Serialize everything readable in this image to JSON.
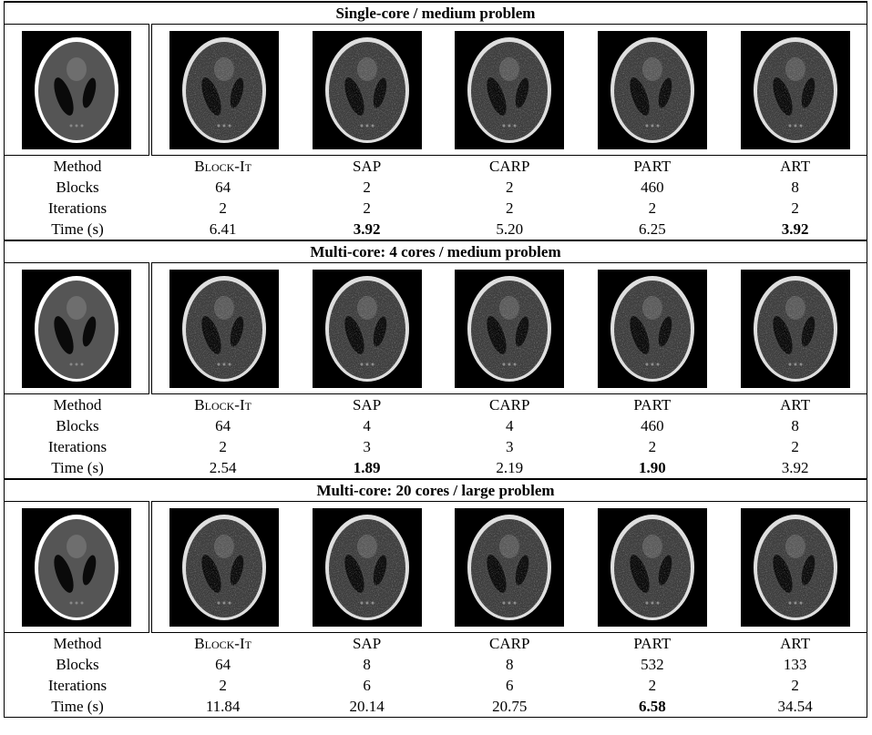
{
  "sections": [
    {
      "title": "Single-core / medium problem",
      "rows": [
        [
          "Method",
          "Block-It",
          "SAP",
          "CARP",
          "PART",
          "ART"
        ],
        [
          "Blocks",
          "64",
          "2",
          "2",
          "460",
          "8"
        ],
        [
          "Iterations",
          "2",
          "2",
          "2",
          "2",
          "2"
        ],
        [
          "Time (s)",
          "6.41",
          "3.92",
          "5.20",
          "6.25",
          "3.92"
        ]
      ],
      "bold": [
        [
          3,
          2
        ],
        [
          3,
          5
        ]
      ]
    },
    {
      "title": "Multi-core: 4 cores / medium problem",
      "rows": [
        [
          "Method",
          "Block-It",
          "SAP",
          "CARP",
          "PART",
          "ART"
        ],
        [
          "Blocks",
          "64",
          "4",
          "4",
          "460",
          "8"
        ],
        [
          "Iterations",
          "2",
          "3",
          "3",
          "2",
          "2"
        ],
        [
          "Time (s)",
          "2.54",
          "1.89",
          "2.19",
          "1.90",
          "3.92"
        ]
      ],
      "bold": [
        [
          3,
          2
        ],
        [
          3,
          4
        ]
      ]
    },
    {
      "title": "Multi-core: 20 cores / large problem",
      "rows": [
        [
          "Method",
          "Block-It",
          "SAP",
          "CARP",
          "PART",
          "ART"
        ],
        [
          "Blocks",
          "64",
          "8",
          "8",
          "532",
          "133"
        ],
        [
          "Iterations",
          "2",
          "6",
          "6",
          "2",
          "2"
        ],
        [
          "Time (s)",
          "11.84",
          "20.14",
          "20.75",
          "6.58",
          "34.54"
        ]
      ],
      "bold": [
        [
          3,
          4
        ]
      ]
    }
  ]
}
